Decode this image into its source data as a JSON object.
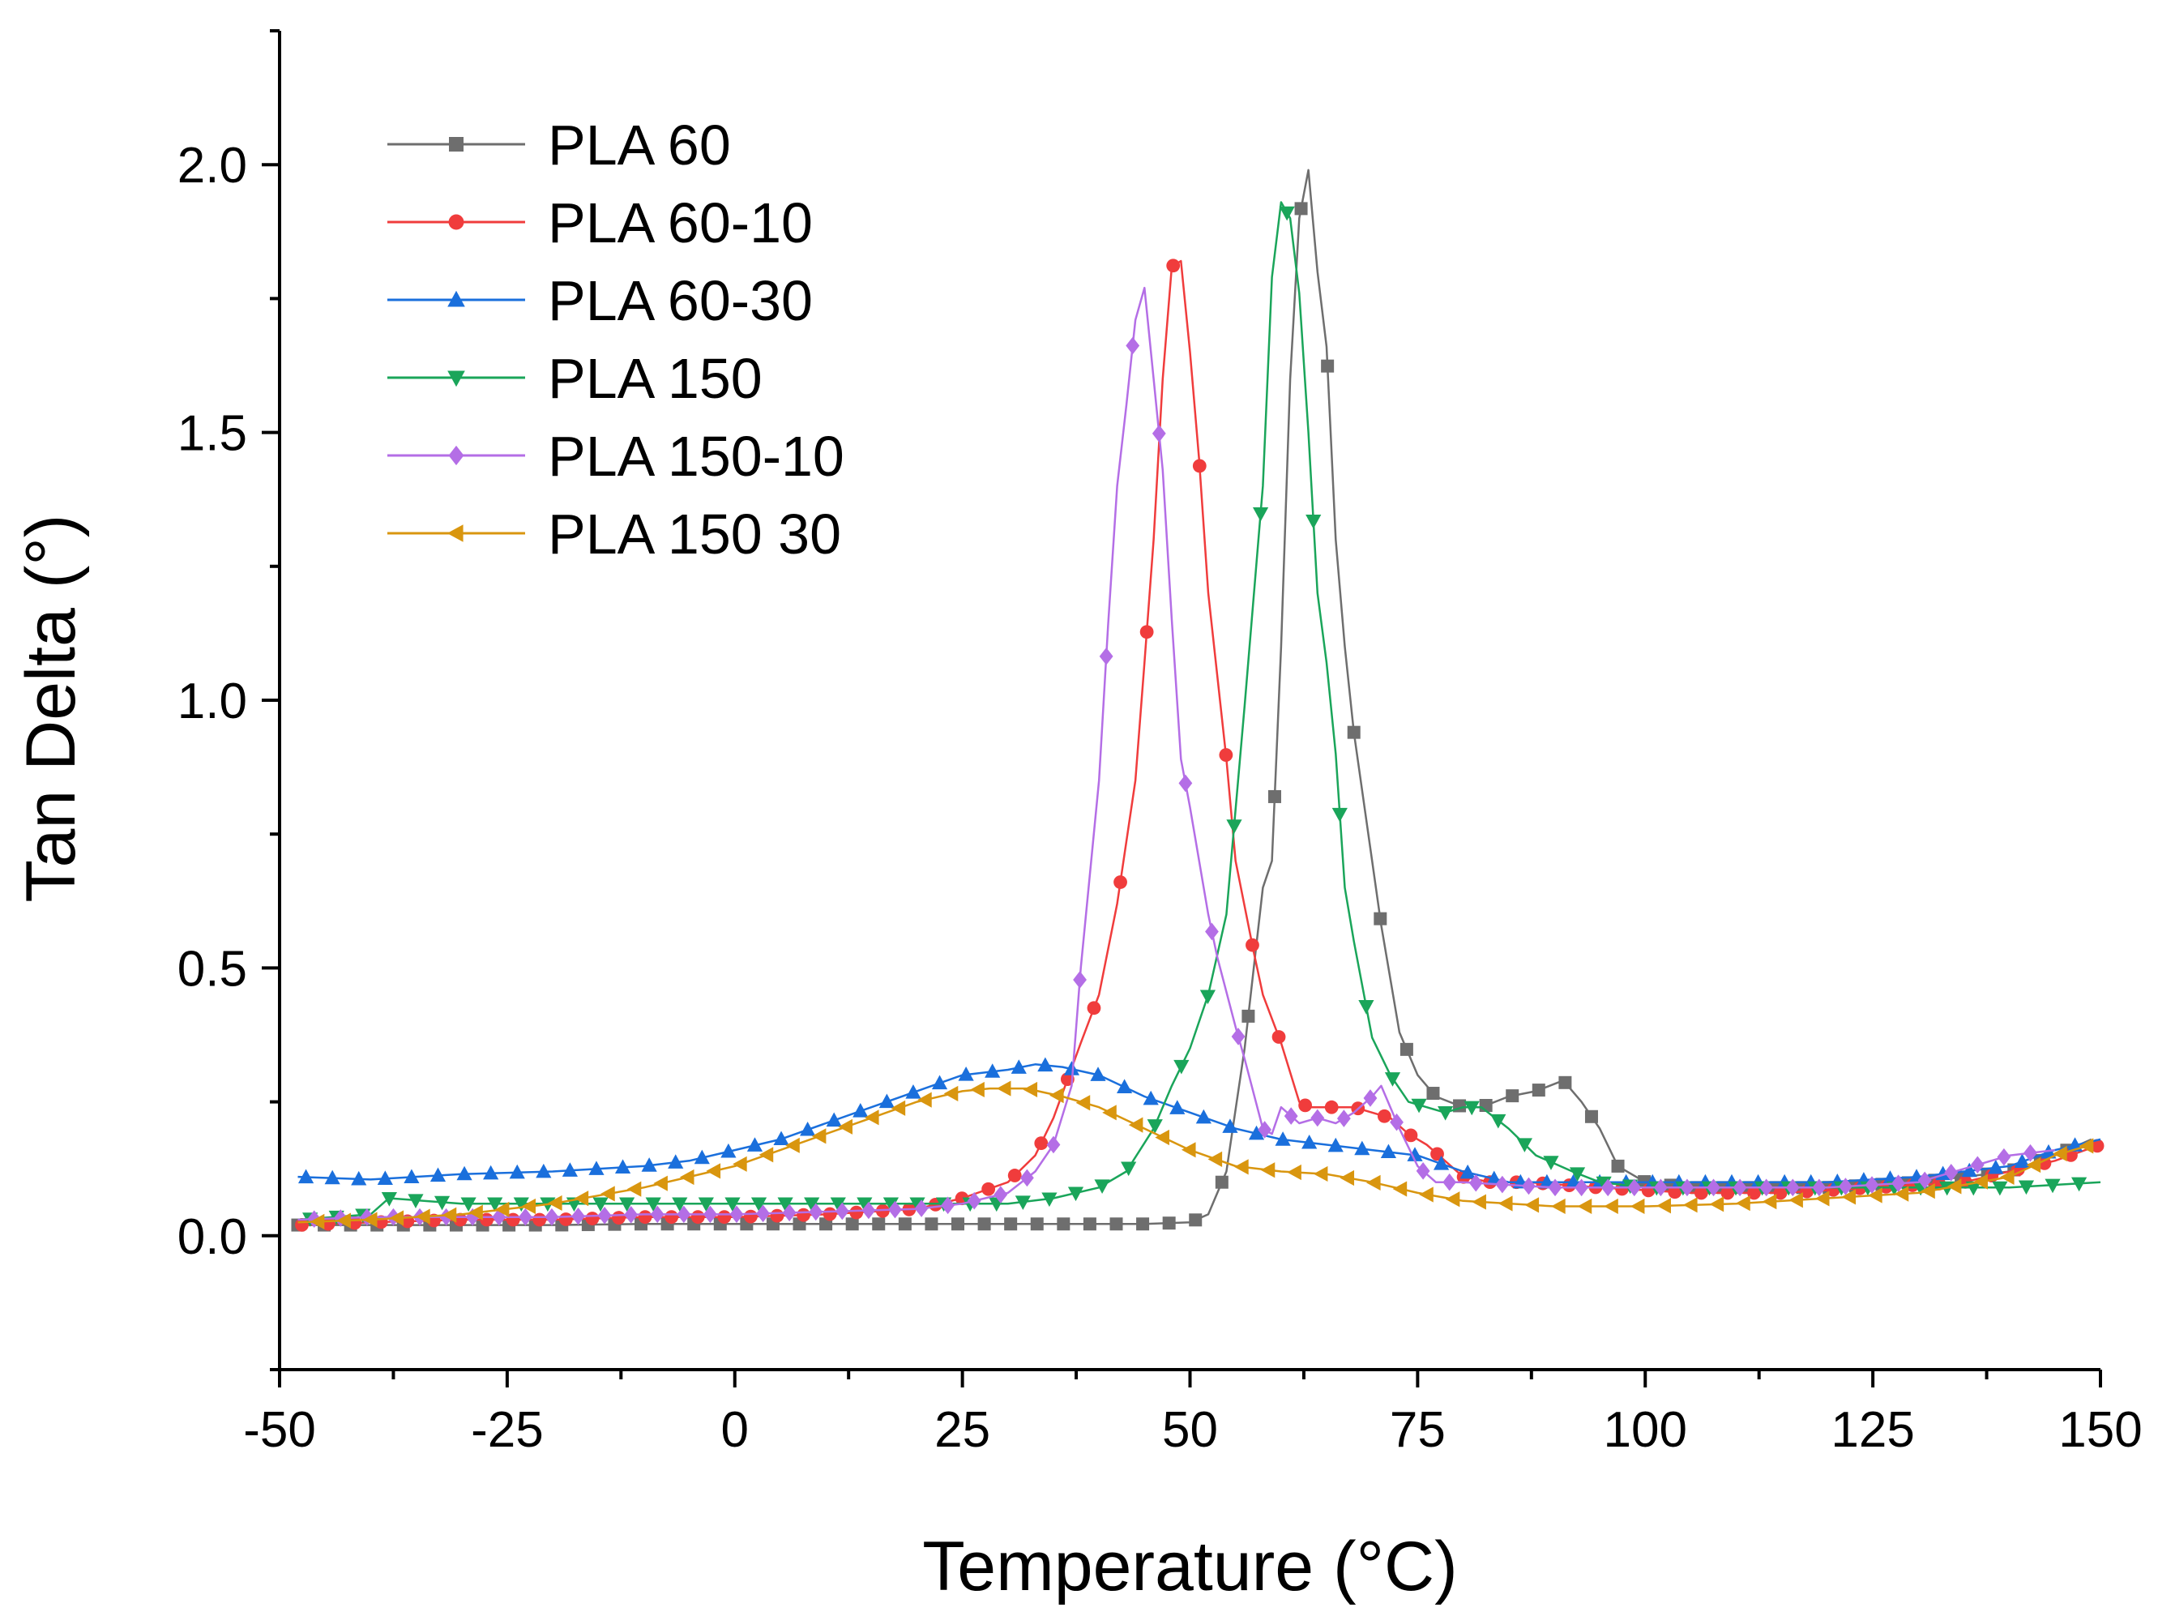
{
  "chart_data": {
    "type": "line",
    "title": "",
    "xlabel": "Temperature (°C)",
    "ylabel": "Tan Delta (°)",
    "xlim": [
      -50,
      150
    ],
    "ylim": [
      -0.25,
      2.25
    ],
    "xticks": [
      -50,
      -25,
      0,
      25,
      50,
      75,
      100,
      125,
      150
    ],
    "xtick_labels": [
      "-50",
      "-25",
      "0",
      "25",
      "50",
      "75",
      "100",
      "125",
      "150"
    ],
    "yticks": [
      0.0,
      0.5,
      1.0,
      1.5,
      2.0
    ],
    "ytick_labels": [
      "0.0",
      "0.5",
      "1.0",
      "1.5",
      "2.0"
    ],
    "grid": false,
    "legend_position": "top-left",
    "series": [
      {
        "name": "PLA 60",
        "color": "#6e6e6e",
        "marker": "square",
        "points": [
          [
            -48,
            0.02
          ],
          [
            -40,
            0.02
          ],
          [
            -30,
            0.02
          ],
          [
            -20,
            0.02
          ],
          [
            -10,
            0.022
          ],
          [
            0,
            0.022
          ],
          [
            10,
            0.022
          ],
          [
            20,
            0.022
          ],
          [
            30,
            0.022
          ],
          [
            40,
            0.022
          ],
          [
            45,
            0.022
          ],
          [
            50,
            0.025
          ],
          [
            52,
            0.04
          ],
          [
            54,
            0.12
          ],
          [
            56,
            0.35
          ],
          [
            58,
            0.65
          ],
          [
            59,
            0.7
          ],
          [
            60,
            1.1
          ],
          [
            61,
            1.6
          ],
          [
            62,
            1.9
          ],
          [
            63,
            1.99
          ],
          [
            64,
            1.8
          ],
          [
            65,
            1.66
          ],
          [
            66,
            1.3
          ],
          [
            67,
            1.1
          ],
          [
            68,
            0.94
          ],
          [
            70,
            0.7
          ],
          [
            71,
            0.58
          ],
          [
            73,
            0.38
          ],
          [
            75,
            0.3
          ],
          [
            77,
            0.26
          ],
          [
            80,
            0.24
          ],
          [
            82,
            0.24
          ],
          [
            85,
            0.26
          ],
          [
            88,
            0.27
          ],
          [
            91,
            0.29
          ],
          [
            93,
            0.25
          ],
          [
            95,
            0.2
          ],
          [
            97,
            0.13
          ],
          [
            100,
            0.1
          ],
          [
            105,
            0.09
          ],
          [
            110,
            0.09
          ],
          [
            120,
            0.09
          ],
          [
            130,
            0.1
          ],
          [
            140,
            0.12
          ],
          [
            145,
            0.15
          ],
          [
            149,
            0.18
          ]
        ]
      },
      {
        "name": "PLA 60-10",
        "color": "#f03c3c",
        "marker": "circle",
        "points": [
          [
            -48,
            0.02
          ],
          [
            -40,
            0.025
          ],
          [
            -30,
            0.03
          ],
          [
            -20,
            0.03
          ],
          [
            -10,
            0.035
          ],
          [
            0,
            0.035
          ],
          [
            10,
            0.04
          ],
          [
            20,
            0.05
          ],
          [
            25,
            0.07
          ],
          [
            30,
            0.1
          ],
          [
            33,
            0.15
          ],
          [
            35,
            0.22
          ],
          [
            38,
            0.36
          ],
          [
            40,
            0.45
          ],
          [
            42,
            0.62
          ],
          [
            44,
            0.85
          ],
          [
            45,
            1.07
          ],
          [
            46,
            1.3
          ],
          [
            47,
            1.6
          ],
          [
            48,
            1.81
          ],
          [
            49,
            1.82
          ],
          [
            50,
            1.65
          ],
          [
            51,
            1.45
          ],
          [
            52,
            1.2
          ],
          [
            54,
            0.89
          ],
          [
            55,
            0.7
          ],
          [
            57,
            0.53
          ],
          [
            58,
            0.45
          ],
          [
            60,
            0.36
          ],
          [
            62,
            0.25
          ],
          [
            63,
            0.24
          ],
          [
            65,
            0.24
          ],
          [
            68,
            0.24
          ],
          [
            70,
            0.23
          ],
          [
            72,
            0.22
          ],
          [
            74,
            0.19
          ],
          [
            76,
            0.17
          ],
          [
            78,
            0.14
          ],
          [
            80,
            0.11
          ],
          [
            83,
            0.1
          ],
          [
            87,
            0.1
          ],
          [
            95,
            0.09
          ],
          [
            105,
            0.08
          ],
          [
            115,
            0.08
          ],
          [
            125,
            0.09
          ],
          [
            135,
            0.1
          ],
          [
            145,
            0.14
          ],
          [
            150,
            0.17
          ]
        ]
      },
      {
        "name": "PLA 60-30",
        "color": "#1a6fdc",
        "marker": "triangle-up",
        "points": [
          [
            -48,
            0.11
          ],
          [
            -40,
            0.105
          ],
          [
            -30,
            0.115
          ],
          [
            -20,
            0.12
          ],
          [
            -10,
            0.13
          ],
          [
            -5,
            0.14
          ],
          [
            0,
            0.16
          ],
          [
            5,
            0.18
          ],
          [
            10,
            0.21
          ],
          [
            15,
            0.24
          ],
          [
            20,
            0.27
          ],
          [
            25,
            0.3
          ],
          [
            30,
            0.31
          ],
          [
            33,
            0.32
          ],
          [
            36,
            0.315
          ],
          [
            40,
            0.3
          ],
          [
            45,
            0.26
          ],
          [
            50,
            0.23
          ],
          [
            55,
            0.2
          ],
          [
            60,
            0.18
          ],
          [
            65,
            0.17
          ],
          [
            70,
            0.16
          ],
          [
            75,
            0.15
          ],
          [
            80,
            0.12
          ],
          [
            85,
            0.1
          ],
          [
            90,
            0.1
          ],
          [
            100,
            0.1
          ],
          [
            110,
            0.1
          ],
          [
            120,
            0.1
          ],
          [
            130,
            0.11
          ],
          [
            140,
            0.13
          ],
          [
            145,
            0.16
          ],
          [
            150,
            0.18
          ]
        ]
      },
      {
        "name": "PLA 150",
        "color": "#1aa55a",
        "marker": "triangle-down",
        "points": [
          [
            -48,
            0.03
          ],
          [
            -40,
            0.04
          ],
          [
            -38,
            0.07
          ],
          [
            -30,
            0.06
          ],
          [
            -20,
            0.06
          ],
          [
            -10,
            0.06
          ],
          [
            0,
            0.06
          ],
          [
            10,
            0.06
          ],
          [
            20,
            0.06
          ],
          [
            30,
            0.06
          ],
          [
            35,
            0.07
          ],
          [
            40,
            0.09
          ],
          [
            43,
            0.12
          ],
          [
            46,
            0.2
          ],
          [
            48,
            0.28
          ],
          [
            50,
            0.35
          ],
          [
            52,
            0.45
          ],
          [
            54,
            0.6
          ],
          [
            56,
            0.99
          ],
          [
            58,
            1.4
          ],
          [
            59,
            1.79
          ],
          [
            60,
            1.93
          ],
          [
            61,
            1.9
          ],
          [
            62,
            1.76
          ],
          [
            63,
            1.5
          ],
          [
            64,
            1.2
          ],
          [
            65,
            1.07
          ],
          [
            66,
            0.9
          ],
          [
            67,
            0.65
          ],
          [
            68,
            0.55
          ],
          [
            70,
            0.37
          ],
          [
            72,
            0.3
          ],
          [
            74,
            0.25
          ],
          [
            76,
            0.24
          ],
          [
            78,
            0.23
          ],
          [
            80,
            0.24
          ],
          [
            82,
            0.24
          ],
          [
            85,
            0.2
          ],
          [
            88,
            0.15
          ],
          [
            92,
            0.12
          ],
          [
            95,
            0.1
          ],
          [
            100,
            0.09
          ],
          [
            110,
            0.09
          ],
          [
            120,
            0.09
          ],
          [
            130,
            0.09
          ],
          [
            140,
            0.09
          ],
          [
            150,
            0.1
          ]
        ]
      },
      {
        "name": "PLA 150-10",
        "color": "#b46ee6",
        "marker": "diamond",
        "points": [
          [
            -48,
            0.03
          ],
          [
            -40,
            0.035
          ],
          [
            -30,
            0.035
          ],
          [
            -20,
            0.035
          ],
          [
            -10,
            0.04
          ],
          [
            0,
            0.04
          ],
          [
            10,
            0.045
          ],
          [
            20,
            0.05
          ],
          [
            25,
            0.06
          ],
          [
            30,
            0.08
          ],
          [
            33,
            0.12
          ],
          [
            35,
            0.17
          ],
          [
            37,
            0.28
          ],
          [
            38,
            0.5
          ],
          [
            40,
            0.85
          ],
          [
            41,
            1.14
          ],
          [
            42,
            1.4
          ],
          [
            43,
            1.55
          ],
          [
            44,
            1.71
          ],
          [
            45,
            1.77
          ],
          [
            46,
            1.6
          ],
          [
            47,
            1.43
          ],
          [
            48,
            1.15
          ],
          [
            49,
            0.89
          ],
          [
            50,
            0.8
          ],
          [
            52,
            0.6
          ],
          [
            53,
            0.52
          ],
          [
            55,
            0.39
          ],
          [
            56,
            0.33
          ],
          [
            58,
            0.2
          ],
          [
            59,
            0.19
          ],
          [
            60,
            0.24
          ],
          [
            62,
            0.21
          ],
          [
            64,
            0.22
          ],
          [
            66,
            0.21
          ],
          [
            68,
            0.23
          ],
          [
            70,
            0.26
          ],
          [
            71,
            0.28
          ],
          [
            73,
            0.2
          ],
          [
            75,
            0.13
          ],
          [
            77,
            0.1
          ],
          [
            80,
            0.1
          ],
          [
            90,
            0.09
          ],
          [
            100,
            0.09
          ],
          [
            110,
            0.09
          ],
          [
            120,
            0.09
          ],
          [
            130,
            0.1
          ],
          [
            140,
            0.15
          ],
          [
            145,
            0.16
          ]
        ]
      },
      {
        "name": "PLA 150 30",
        "color": "#d9960f",
        "marker": "triangle-left",
        "points": [
          [
            -48,
            0.025
          ],
          [
            -40,
            0.03
          ],
          [
            -30,
            0.04
          ],
          [
            -20,
            0.06
          ],
          [
            -10,
            0.09
          ],
          [
            -5,
            0.11
          ],
          [
            0,
            0.13
          ],
          [
            5,
            0.16
          ],
          [
            10,
            0.19
          ],
          [
            15,
            0.22
          ],
          [
            20,
            0.25
          ],
          [
            25,
            0.27
          ],
          [
            28,
            0.275
          ],
          [
            32,
            0.275
          ],
          [
            36,
            0.26
          ],
          [
            40,
            0.24
          ],
          [
            45,
            0.2
          ],
          [
            50,
            0.16
          ],
          [
            55,
            0.13
          ],
          [
            60,
            0.12
          ],
          [
            65,
            0.115
          ],
          [
            70,
            0.1
          ],
          [
            75,
            0.08
          ],
          [
            80,
            0.065
          ],
          [
            90,
            0.055
          ],
          [
            100,
            0.055
          ],
          [
            110,
            0.06
          ],
          [
            120,
            0.07
          ],
          [
            130,
            0.08
          ],
          [
            140,
            0.11
          ],
          [
            145,
            0.15
          ],
          [
            149,
            0.17
          ]
        ]
      }
    ]
  }
}
